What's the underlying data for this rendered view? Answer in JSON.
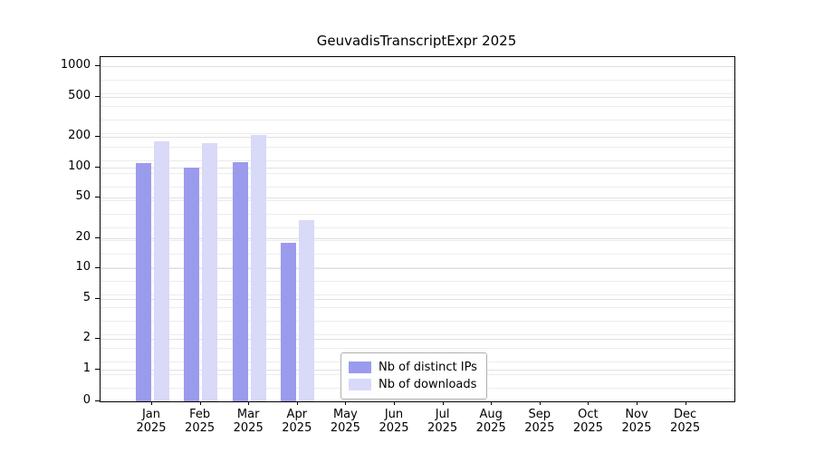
{
  "chart_data": {
    "type": "bar",
    "title": "GeuvadisTranscriptExpr 2025",
    "x_year": "2025",
    "categories": [
      "Jan",
      "Feb",
      "Mar",
      "Apr",
      "May",
      "Jun",
      "Jul",
      "Aug",
      "Sep",
      "Oct",
      "Nov",
      "Dec"
    ],
    "series": [
      {
        "name": "Nb of distinct IPs",
        "color": "#9b9bee",
        "values": [
          110,
          100,
          112,
          18,
          0,
          0,
          0,
          0,
          0,
          0,
          0,
          0
        ]
      },
      {
        "name": "Nb of downloads",
        "color": "#d9d9f8",
        "values": [
          180,
          175,
          210,
          30,
          0,
          0,
          0,
          0,
          0,
          0,
          0,
          0
        ]
      }
    ],
    "y_ticks": [
      0,
      1,
      2,
      5,
      10,
      20,
      50,
      100,
      200,
      500,
      1000
    ],
    "y_scale": "symlog",
    "ylim": [
      0,
      1000
    ],
    "grid": true,
    "legend_position": "lower center"
  }
}
